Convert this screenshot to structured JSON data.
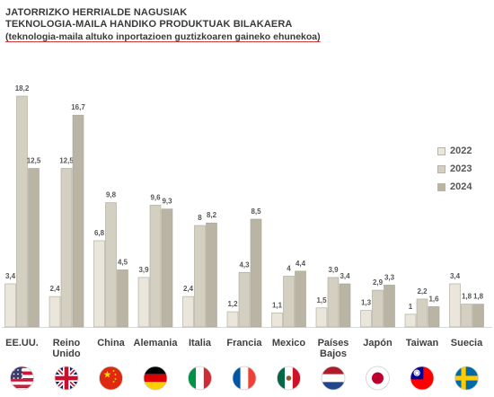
{
  "title": {
    "line1": "JATORRIZKO HERRIALDE NAGUSIAK",
    "line2": "TEKNOLOGIA-MAILA HANDIKO PRODUKTUAK BILAKAERA",
    "line3": "(teknologia-maila altuko inportazioen guztizkoaren gaineko ehunekoa)"
  },
  "legend": [
    "2022",
    "2023",
    "2024"
  ],
  "colors": {
    "2022": "#eae6dc",
    "2023": "#d4d0c1",
    "2024": "#b9b4a3",
    "edge": "#aaa595",
    "label": "#555555"
  },
  "chart_data": {
    "type": "bar",
    "categories": [
      "EE.UU.",
      "Reino Unido",
      "China",
      "Alemania",
      "Italia",
      "Francia",
      "Mexico",
      "Países Bajos",
      "Japón",
      "Taiwan",
      "Suecia"
    ],
    "category_lines": [
      [
        "EE.UU."
      ],
      [
        "Reino",
        "Unido"
      ],
      [
        "China"
      ],
      [
        "Alemania"
      ],
      [
        "Italia"
      ],
      [
        "Francia"
      ],
      [
        "Mexico"
      ],
      [
        "Países",
        "Bajos"
      ],
      [
        "Japón"
      ],
      [
        "Taiwan"
      ],
      [
        "Suecia"
      ]
    ],
    "series": [
      {
        "name": "2022",
        "values": [
          3.4,
          2.4,
          6.8,
          3.9,
          2.4,
          1.2,
          1.1,
          1.5,
          1.3,
          1.0,
          3.4
        ]
      },
      {
        "name": "2023",
        "values": [
          18.2,
          12.5,
          9.8,
          9.6,
          8.0,
          4.3,
          4.0,
          3.9,
          2.9,
          2.2,
          1.8
        ]
      },
      {
        "name": "2024",
        "values": [
          12.5,
          16.7,
          4.5,
          9.3,
          8.2,
          8.5,
          4.4,
          3.4,
          3.3,
          1.6,
          1.8
        ]
      }
    ],
    "value_labels": [
      [
        "3,4",
        "2,4",
        "6,8",
        "3,9",
        "2,4",
        "1,2",
        "1,1",
        "1,5",
        "1,3",
        "1",
        "3,4"
      ],
      [
        "18,2",
        "12,5",
        "9,8",
        "9,6",
        "8",
        "4,3",
        "4",
        "3,9",
        "2,9",
        "2,2",
        "1,8"
      ],
      [
        "12,5",
        "16,7",
        "4,5",
        "9,3",
        "8,2",
        "8,5",
        "4,4",
        "3,4",
        "3,3",
        "1,6",
        "1,8"
      ]
    ],
    "ylim": [
      0,
      18.2
    ],
    "grid": false,
    "legend_position": "right",
    "flags": [
      "us-flag-icon",
      "uk-flag-icon",
      "china-flag-icon",
      "germany-flag-icon",
      "italy-flag-icon",
      "france-flag-icon",
      "mexico-flag-icon",
      "netherlands-flag-icon",
      "japan-flag-icon",
      "taiwan-flag-icon",
      "sweden-flag-icon"
    ]
  }
}
